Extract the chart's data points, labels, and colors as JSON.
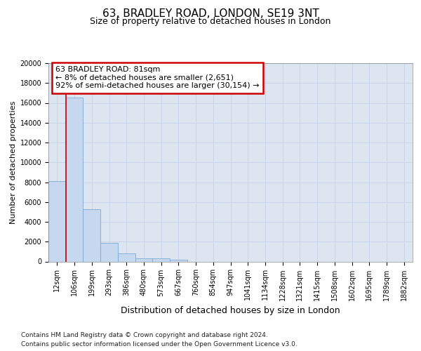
{
  "title": "63, BRADLEY ROAD, LONDON, SE19 3NT",
  "subtitle": "Size of property relative to detached houses in London",
  "xlabel": "Distribution of detached houses by size in London",
  "ylabel": "Number of detached properties",
  "categories": [
    "12sqm",
    "106sqm",
    "199sqm",
    "293sqm",
    "386sqm",
    "480sqm",
    "573sqm",
    "667sqm",
    "760sqm",
    "854sqm",
    "947sqm",
    "1041sqm",
    "1134sqm",
    "1228sqm",
    "1321sqm",
    "1415sqm",
    "1508sqm",
    "1602sqm",
    "1695sqm",
    "1789sqm",
    "1882sqm"
  ],
  "values": [
    8100,
    16500,
    5300,
    1850,
    800,
    350,
    300,
    200,
    0,
    0,
    0,
    0,
    0,
    0,
    0,
    0,
    0,
    0,
    0,
    0,
    0
  ],
  "bar_color": "#c5d8f0",
  "bar_edge_color": "#7aaad4",
  "vline_color": "#cc0000",
  "vline_x": 0.5,
  "annotation_line1": "63 BRADLEY ROAD: 81sqm",
  "annotation_line2": "← 8% of detached houses are smaller (2,651)",
  "annotation_line3": "92% of semi-detached houses are larger (30,154) →",
  "annotation_box_edgecolor": "#cc0000",
  "annotation_bg": "#ffffff",
  "ylim": [
    0,
    20000
  ],
  "yticks": [
    0,
    2000,
    4000,
    6000,
    8000,
    10000,
    12000,
    14000,
    16000,
    18000,
    20000
  ],
  "grid_color": "#c8d4e8",
  "bg_color": "#dde6f0",
  "footnote_line1": "Contains HM Land Registry data © Crown copyright and database right 2024.",
  "footnote_line2": "Contains public sector information licensed under the Open Government Licence v3.0.",
  "title_fontsize": 11,
  "subtitle_fontsize": 9,
  "xlabel_fontsize": 9,
  "ylabel_fontsize": 8,
  "tick_fontsize": 7,
  "annot_fontsize": 8,
  "footnote_fontsize": 6.5
}
